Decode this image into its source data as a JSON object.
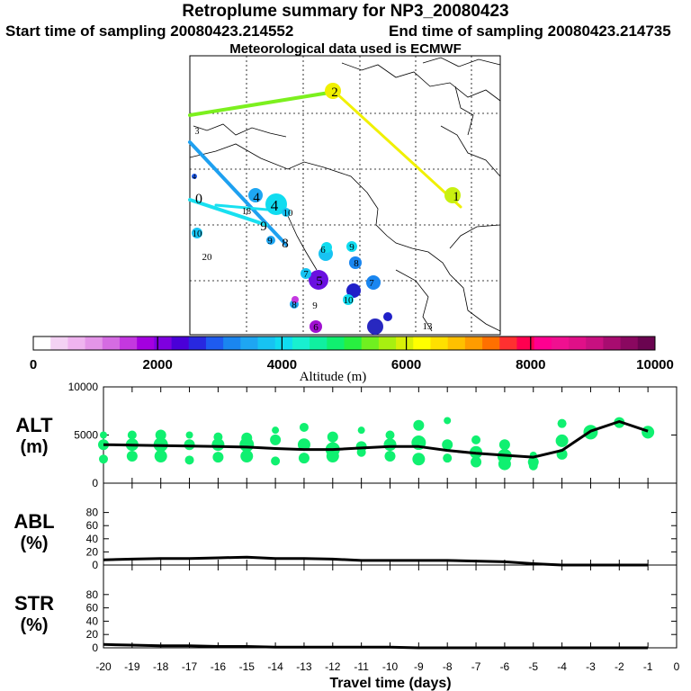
{
  "header": {
    "title": "Retroplume summary for NP3_20080423",
    "start": "Start time of sampling 20080423.214552",
    "end": "End time of sampling 20080423.214735",
    "met": "Meteorological data used is ECMWF"
  },
  "colorbar": {
    "label": "Altitude (m)",
    "ticks": [
      "0",
      "2000",
      "4000",
      "6000",
      "8000",
      "10000"
    ],
    "colors": [
      "#ffffff",
      "#f4d2f4",
      "#efb4ef",
      "#e495e8",
      "#d56ce2",
      "#c438e0",
      "#a400e0",
      "#7e00df",
      "#4a00d8",
      "#2828e0",
      "#1e5bf0",
      "#1a86f0",
      "#1ea6f2",
      "#17c3f2",
      "#10dcf0",
      "#18f0d0",
      "#10f0a0",
      "#10f070",
      "#28f040",
      "#70f020",
      "#a8f010",
      "#d8f008",
      "#ffff00",
      "#ffe000",
      "#ffc000",
      "#ff9c00",
      "#ff7000",
      "#ff3030",
      "#ff0050",
      "#ff0090",
      "#f01090",
      "#e01088",
      "#c81080",
      "#a80c70",
      "#8a0860",
      "#6a0450"
    ]
  },
  "map_labels": [
    "0",
    "1",
    "2",
    "3",
    "4",
    "5",
    "6",
    "7",
    "8",
    "9",
    "10",
    "13",
    "18",
    "20"
  ],
  "chart_data": [
    {
      "type": "line",
      "id": "alt",
      "title": "ALT",
      "ylabel": "(m)",
      "ylim": [
        0,
        10000
      ],
      "yticks": [
        "0",
        "5000",
        "10000"
      ],
      "x": [
        -20,
        -19,
        -18,
        -17,
        -16,
        -15,
        -14,
        -13,
        -12,
        -11,
        -10,
        -9,
        -8,
        -7,
        -6,
        -5,
        -4,
        -3,
        -2,
        -1
      ],
      "values": [
        4000,
        3950,
        3900,
        3850,
        3800,
        3750,
        3600,
        3500,
        3500,
        3650,
        3800,
        3800,
        3400,
        3100,
        2900,
        2700,
        3400,
        5400,
        6400,
        5400
      ],
      "scatter_y": [
        [
          5000,
          4000,
          2500
        ],
        [
          5000,
          4000,
          2800
        ],
        [
          5000,
          4000,
          2800
        ],
        [
          5000,
          4000,
          2400
        ],
        [
          4800,
          4000,
          2700
        ],
        [
          4700,
          4000,
          2800
        ],
        [
          5500,
          4500,
          2300
        ],
        [
          5800,
          4000,
          2600
        ],
        [
          4800,
          3500,
          2800
        ],
        [
          5500,
          3800,
          3200
        ],
        [
          5000,
          4000,
          2800
        ],
        [
          6000,
          4200,
          2500
        ],
        [
          6500,
          4000,
          2600
        ],
        [
          4500,
          3200,
          2200
        ],
        [
          4000,
          2800,
          2000
        ],
        [
          2900,
          2200,
          1800
        ],
        [
          6200,
          4400,
          3000
        ],
        [
          5400,
          5300,
          5200
        ],
        [
          6400,
          6300,
          6200
        ],
        [
          5400,
          5300,
          5200
        ]
      ],
      "xticks": [
        "-20",
        "-19",
        "-18",
        "-17",
        "-16",
        "-15",
        "-14",
        "-13",
        "-12",
        "-11",
        "-10",
        "-9",
        "-8",
        "-7",
        "-6",
        "-5",
        "-4",
        "-3",
        "-2",
        "-1",
        "0"
      ]
    },
    {
      "type": "line",
      "id": "abl",
      "title": "ABL",
      "ylabel": "(%)",
      "ylim": [
        0,
        100
      ],
      "yticks": [
        "0",
        "20",
        "40",
        "60",
        "80"
      ],
      "x": [
        -20,
        -19,
        -18,
        -17,
        -16,
        -15,
        -14,
        -13,
        -12,
        -11,
        -10,
        -9,
        -8,
        -7,
        -6,
        -5,
        -4,
        -3,
        -2,
        -1
      ],
      "values": [
        8,
        9,
        10,
        10,
        11,
        12,
        10,
        10,
        9,
        7,
        7,
        7,
        7,
        6,
        5,
        2,
        0,
        0,
        0,
        0
      ]
    },
    {
      "type": "line",
      "id": "str",
      "title": "STR",
      "ylabel": "(%)",
      "ylim": [
        0,
        100
      ],
      "yticks": [
        "0",
        "20",
        "40",
        "60",
        "80"
      ],
      "x": [
        -20,
        -19,
        -18,
        -17,
        -16,
        -15,
        -14,
        -13,
        -12,
        -11,
        -10,
        -9,
        -8,
        -7,
        -6,
        -5,
        -4,
        -3,
        -2,
        -1
      ],
      "values": [
        5,
        4,
        3,
        3,
        2,
        2,
        1,
        1,
        1,
        1,
        1,
        0,
        0,
        0,
        0,
        0,
        0,
        0,
        0,
        0
      ],
      "xlabel": "Travel time (days)"
    }
  ]
}
